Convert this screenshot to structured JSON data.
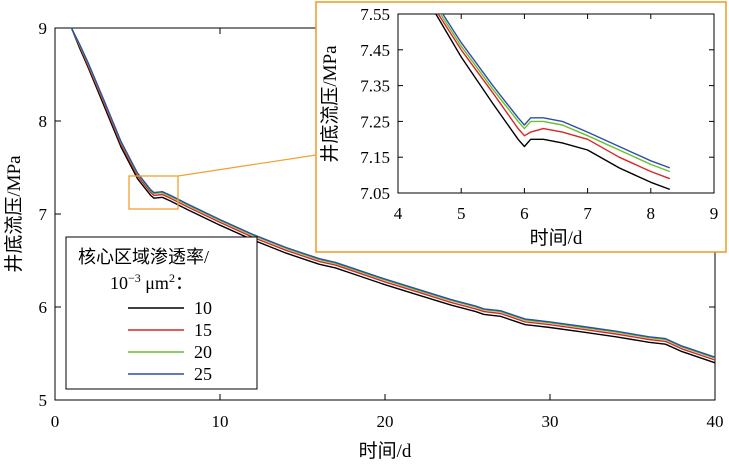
{
  "chart_data": [
    {
      "type": "line",
      "xlabel": "时间/d",
      "ylabel": "井底流压/MPa",
      "xlim": [
        0,
        40
      ],
      "ylim": [
        5,
        9
      ],
      "xticks": [
        "0",
        "10",
        "20",
        "30",
        "40"
      ],
      "yticks": [
        "5",
        "6",
        "7",
        "8",
        "9"
      ],
      "legend": {
        "title_line1": "核心区域渗透率/",
        "title_line2_base": "10",
        "title_line2_exp": "−3",
        "title_line2_unit": " μm",
        "title_line2_unit_exp": "2",
        "title_line2_suffix": "：",
        "placement": "left"
      },
      "x": [
        1,
        1.5,
        2,
        3,
        4,
        5,
        5.8,
        6,
        6.5,
        7,
        8,
        10,
        12,
        14,
        16,
        17,
        18,
        20,
        22,
        24,
        25.5,
        26,
        27,
        28.5,
        29,
        30,
        32,
        34,
        36,
        37,
        38,
        40
      ],
      "series": [
        {
          "name": "10",
          "color": "#000000",
          "values": [
            9.0,
            8.78,
            8.58,
            8.15,
            7.72,
            7.38,
            7.2,
            7.17,
            7.18,
            7.14,
            7.05,
            6.88,
            6.72,
            6.58,
            6.46,
            6.42,
            6.36,
            6.24,
            6.13,
            6.02,
            5.95,
            5.92,
            5.9,
            5.81,
            5.8,
            5.78,
            5.73,
            5.68,
            5.62,
            5.6,
            5.52,
            5.4
          ]
        },
        {
          "name": "15",
          "color": "#d62728",
          "values": [
            9.0,
            8.8,
            8.6,
            8.18,
            7.75,
            7.41,
            7.23,
            7.2,
            7.21,
            7.17,
            7.08,
            6.91,
            6.75,
            6.61,
            6.49,
            6.45,
            6.39,
            6.27,
            6.16,
            6.05,
            5.98,
            5.95,
            5.93,
            5.84,
            5.83,
            5.81,
            5.76,
            5.71,
            5.65,
            5.63,
            5.55,
            5.43
          ]
        },
        {
          "name": "20",
          "color": "#6cbf2a",
          "values": [
            9.0,
            8.81,
            8.62,
            8.2,
            7.77,
            7.43,
            7.25,
            7.22,
            7.23,
            7.19,
            7.1,
            6.93,
            6.77,
            6.63,
            6.51,
            6.47,
            6.41,
            6.29,
            6.18,
            6.07,
            6.0,
            5.97,
            5.95,
            5.86,
            5.85,
            5.83,
            5.78,
            5.73,
            5.67,
            5.65,
            5.57,
            5.45
          ]
        },
        {
          "name": "25",
          "color": "#2b4fa8",
          "values": [
            9.0,
            8.82,
            8.63,
            8.21,
            7.78,
            7.44,
            7.26,
            7.23,
            7.24,
            7.2,
            7.11,
            6.94,
            6.78,
            6.64,
            6.52,
            6.48,
            6.42,
            6.3,
            6.19,
            6.08,
            6.01,
            5.98,
            5.96,
            5.87,
            5.86,
            5.84,
            5.79,
            5.74,
            5.68,
            5.66,
            5.58,
            5.46
          ]
        }
      ]
    },
    {
      "type": "line",
      "xlabel": "时间/d",
      "ylabel": "井底流压/MPa",
      "xlim": [
        4,
        9
      ],
      "ylim": [
        7.05,
        7.55
      ],
      "xticks": [
        "4",
        "5",
        "6",
        "7",
        "8",
        "9"
      ],
      "yticks": [
        "7.05",
        "7.15",
        "7.25",
        "7.35",
        "7.45",
        "7.55"
      ],
      "x": [
        4.6,
        5.0,
        5.5,
        5.9,
        6.0,
        6.1,
        6.3,
        6.6,
        7.0,
        7.5,
        8.0,
        8.3
      ],
      "series": [
        {
          "name": "10",
          "color": "#000000",
          "values": [
            7.55,
            7.43,
            7.3,
            7.2,
            7.18,
            7.2,
            7.2,
            7.19,
            7.17,
            7.12,
            7.08,
            7.06
          ]
        },
        {
          "name": "15",
          "color": "#d62728",
          "values": [
            7.56,
            7.45,
            7.33,
            7.23,
            7.21,
            7.22,
            7.23,
            7.22,
            7.2,
            7.15,
            7.11,
            7.09
          ]
        },
        {
          "name": "20",
          "color": "#6cbf2a",
          "values": [
            7.57,
            7.46,
            7.34,
            7.25,
            7.23,
            7.25,
            7.25,
            7.24,
            7.21,
            7.17,
            7.13,
            7.11
          ]
        },
        {
          "name": "25",
          "color": "#2b4fa8",
          "values": [
            7.58,
            7.47,
            7.35,
            7.26,
            7.24,
            7.26,
            7.26,
            7.25,
            7.22,
            7.18,
            7.14,
            7.12
          ]
        }
      ]
    }
  ],
  "accent_color": "#f0a030"
}
